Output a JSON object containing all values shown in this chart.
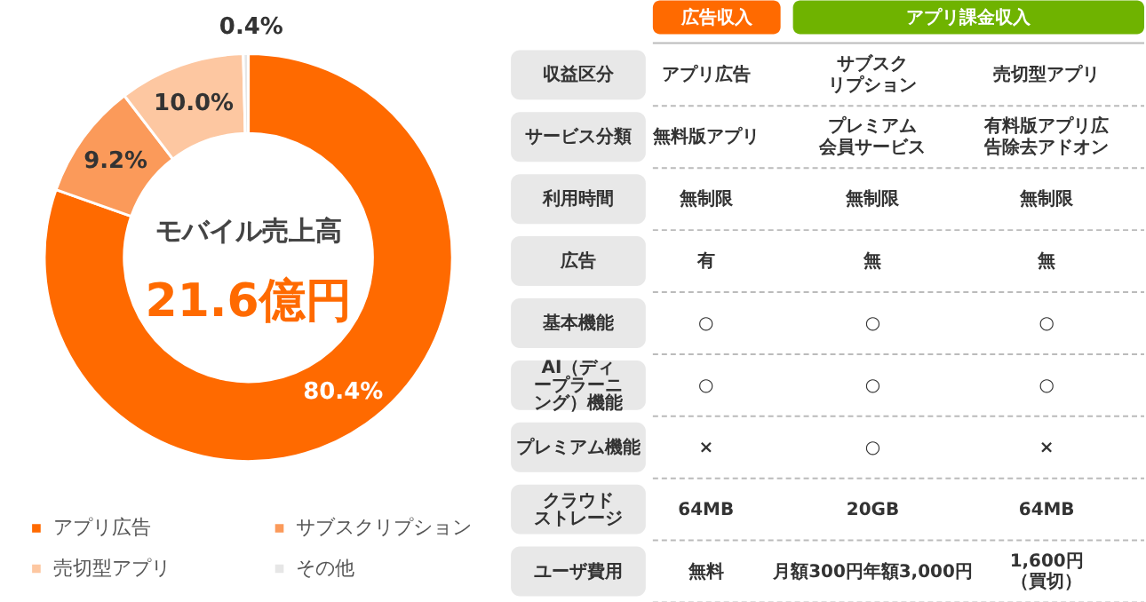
{
  "chart_data": [
    {
      "type": "donut",
      "categories": [
        "アプリ広告",
        "サブスクリプション",
        "売切型アプリ",
        "その他"
      ],
      "values": [
        80.4,
        9.2,
        10.0,
        0.4
      ],
      "colors": [
        "#ff6a00",
        "#fb9a5a",
        "#fdc7a1",
        "#e6e6e6"
      ],
      "value_labels": [
        "80.4%",
        "9.2%",
        "10.0%",
        "0.4%"
      ],
      "legend": "bottom",
      "annotations": [
        "モバイル売上高",
        "21.6億円"
      ]
    },
    {
      "type": "other",
      "annotations": [
        "広告収入",
        "アプリ課金収入"
      ],
      "colors": [
        "#ff6a00",
        "#6fb300"
      ],
      "y_categories": [
        "収益区分",
        "サービス分類",
        "利用時間",
        "広告",
        "基本機能",
        "AI（ディープラーニング）機能",
        "プレミアム機能",
        "クラウドストレージ",
        "ユーザ費用"
      ],
      "cell_labels": [
        [
          "アプリ広告",
          "サブスクリプション",
          "売切型アプリ"
        ],
        [
          "無料版アプリ",
          "プレミアム会員サービス",
          "有料版アプリ広告除去アドオン"
        ],
        [
          "無制限",
          "無制限",
          "無制限"
        ],
        [
          "有",
          "無",
          "無"
        ],
        [
          "○",
          "○",
          "○"
        ],
        [
          "○",
          "○",
          "○"
        ],
        [
          "×",
          "○",
          "×"
        ],
        [
          "64MB",
          "20GB",
          "64MB"
        ],
        [
          "無料",
          "月額300円年額3,000円",
          "1,600円（買切）"
        ]
      ]
    }
  ]
}
